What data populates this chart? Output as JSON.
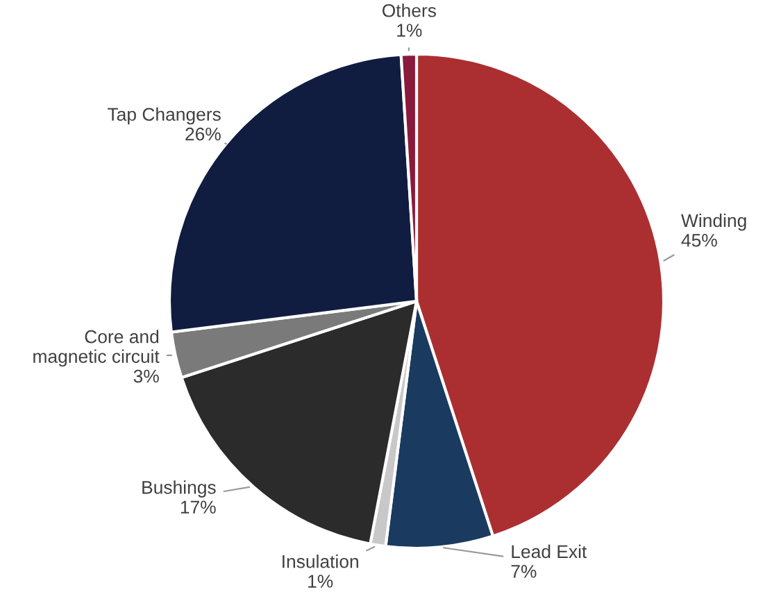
{
  "chart_data": {
    "type": "pie",
    "categories": [
      "Winding",
      "Lead Exit",
      "Insulation",
      "Bushings",
      "Core and\nmagnetic circuit",
      "Tap Changers",
      "Others"
    ],
    "values": [
      45,
      7,
      1,
      17,
      3,
      26,
      1
    ],
    "value_labels": [
      "45%",
      "7%",
      "1%",
      "17%",
      "3%",
      "26%",
      "1%"
    ],
    "colors": [
      "#ab2f31",
      "#1b3a60",
      "#c8c8c8",
      "#2b2b2b",
      "#7a7a7a",
      "#101d40",
      "#8a1a3c"
    ],
    "legend": false
  }
}
